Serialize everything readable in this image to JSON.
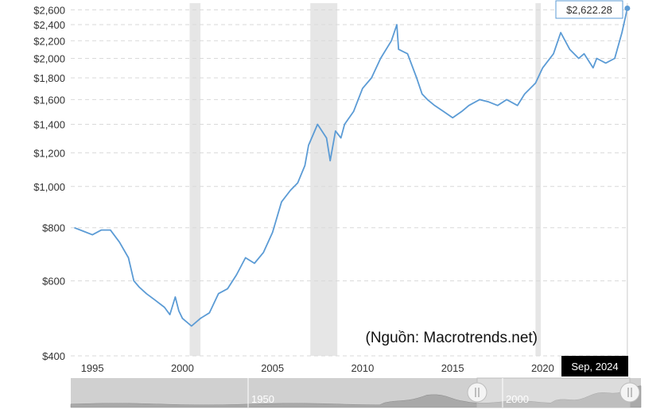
{
  "chart_data": {
    "type": "line",
    "series": [
      {
        "x": [
          1994.0,
          1994.5,
          1995.0,
          1995.5,
          1996.0,
          1996.5,
          1997.0,
          1997.3,
          1997.6,
          1998.0,
          1998.5,
          1999.0,
          1999.3,
          1999.6,
          1999.8,
          2000.0,
          2000.5,
          2001.0,
          2001.5,
          2002.0,
          2002.5,
          2003.0,
          2003.5,
          2004.0,
          2004.5,
          2005.0,
          2005.5,
          2006.0,
          2006.4,
          2006.8,
          2007.0,
          2007.5,
          2008.0,
          2008.2,
          2008.5,
          2008.8,
          2009.0,
          2009.5,
          2010.0,
          2010.5,
          2011.0,
          2011.6,
          2011.9,
          2012.0,
          2012.5,
          2013.0,
          2013.3,
          2013.6,
          2014.0,
          2014.5,
          2015.0,
          2015.5,
          2015.9,
          2016.5,
          2017.0,
          2017.5,
          2018.0,
          2018.6,
          2019.0,
          2019.6,
          2020.0,
          2020.6,
          2021.0,
          2021.5,
          2022.0,
          2022.3,
          2022.8,
          2023.0,
          2023.5,
          2024.0,
          2024.4,
          2024.7
        ],
        "y": [
          800,
          785,
          770,
          790,
          790,
          740,
          680,
          600,
          580,
          560,
          540,
          520,
          500,
          550,
          510,
          490,
          470,
          490,
          505,
          560,
          575,
          620,
          680,
          660,
          700,
          780,
          920,
          980,
          1020,
          1120,
          1250,
          1400,
          1300,
          1150,
          1350,
          1300,
          1400,
          1500,
          1700,
          1800,
          2000,
          2200,
          2400,
          2100,
          2050,
          1800,
          1650,
          1600,
          1550,
          1500,
          1450,
          1500,
          1550,
          1600,
          1580,
          1550,
          1600,
          1550,
          1650,
          1750,
          1900,
          2050,
          2300,
          2100,
          2000,
          2050,
          1900,
          2000,
          1950,
          2000,
          2300,
          2622.28
        ]
      }
    ],
    "y_ticks": [
      "$400",
      "$600",
      "$800",
      "$1,000",
      "$1,200",
      "$1,400",
      "$1,600",
      "$1,800",
      "$2,000",
      "$2,200",
      "$2,400",
      "$2,600"
    ],
    "y_tick_values": [
      400,
      600,
      800,
      1000,
      1200,
      1400,
      1600,
      1800,
      2000,
      2200,
      2400,
      2600
    ],
    "x_ticks": [
      "1995",
      "2000",
      "2005",
      "2010",
      "2015",
      "2020"
    ],
    "x_tick_values": [
      1995,
      2000,
      2005,
      2010,
      2015,
      2020
    ],
    "xlim": [
      1993.8,
      2024.75
    ],
    "ylim": [
      400,
      2650
    ],
    "y_scale": "log",
    "grid": true,
    "recessions": [
      [
        2000.4,
        2001.0
      ],
      [
        2007.1,
        2008.6
      ],
      [
        2019.6,
        2019.9
      ]
    ],
    "last_value_label": "$2,622.28",
    "cursor_label": "Sep, 2024",
    "annotation": "(Nguồn: Macrotrends.net)",
    "navigator_labels": [
      "1950",
      "2000"
    ],
    "colors": {
      "line": "#5b9bd5",
      "recession": "#e6e6e6",
      "grid": "#d9d9d9",
      "cursor_bg": "#000000"
    }
  }
}
